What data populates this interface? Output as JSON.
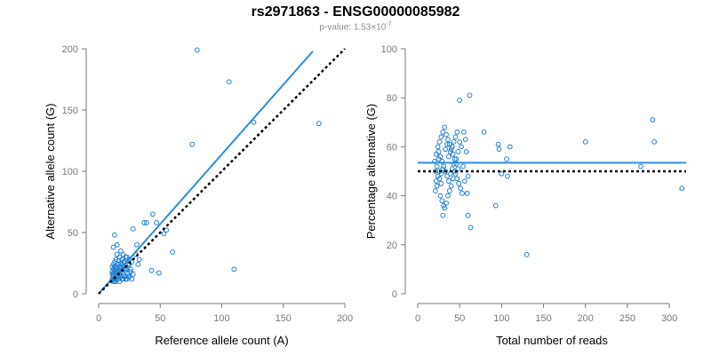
{
  "title": "rs2971863 - ENSG00000085982",
  "subtitle": {
    "prefix": "p-value: 1.53×10",
    "exponent": "-7"
  },
  "colors": {
    "points": "#1f7fd4",
    "fit_line": "#2a8de0",
    "reference_line": "#000000",
    "axis": "#7a7a7a"
  },
  "chart_data": [
    {
      "type": "scatter",
      "xlabel": "Reference allele count (A)",
      "ylabel": "Alternative allele count (G)",
      "xlim": [
        0,
        200
      ],
      "ylim": [
        0,
        200
      ],
      "xticks": [
        0,
        50,
        100,
        150,
        200
      ],
      "yticks": [
        0,
        50,
        100,
        150,
        200
      ],
      "grid": false,
      "lines": [
        {
          "style": "solid",
          "color": "#2a8de0",
          "x": [
            0,
            174
          ],
          "y": [
            0,
            198
          ]
        },
        {
          "style": "dotted",
          "color": "#000000",
          "x": [
            0,
            200
          ],
          "y": [
            0,
            200
          ]
        }
      ],
      "points": [
        [
          80,
          199
        ],
        [
          106,
          173
        ],
        [
          126,
          140
        ],
        [
          179,
          139
        ],
        [
          76,
          122
        ],
        [
          110,
          20
        ],
        [
          60,
          34
        ],
        [
          55,
          52
        ],
        [
          53,
          49
        ],
        [
          44,
          65
        ],
        [
          47,
          58
        ],
        [
          43,
          19
        ],
        [
          49,
          17
        ],
        [
          39,
          58
        ],
        [
          37,
          58
        ],
        [
          31,
          40
        ],
        [
          28,
          53
        ],
        [
          33,
          28
        ],
        [
          30,
          32
        ],
        [
          32,
          24
        ],
        [
          12,
          38
        ],
        [
          13,
          48
        ],
        [
          15,
          40
        ],
        [
          18,
          35
        ],
        [
          20,
          32
        ],
        [
          22,
          30
        ],
        [
          25,
          28
        ],
        [
          27,
          26
        ],
        [
          24,
          24
        ],
        [
          26,
          20
        ],
        [
          20,
          22
        ],
        [
          18,
          25
        ],
        [
          16,
          27
        ],
        [
          14,
          28
        ],
        [
          13,
          26
        ],
        [
          12,
          24
        ],
        [
          11,
          22
        ],
        [
          12,
          20
        ],
        [
          13,
          18
        ],
        [
          14,
          16
        ],
        [
          15,
          14
        ],
        [
          16,
          12
        ],
        [
          17,
          10
        ],
        [
          12,
          14
        ],
        [
          11,
          16
        ],
        [
          12,
          12
        ],
        [
          13,
          10
        ],
        [
          14,
          20
        ],
        [
          15,
          22
        ],
        [
          16,
          24
        ],
        [
          17,
          22
        ],
        [
          18,
          20
        ],
        [
          19,
          18
        ],
        [
          20,
          16
        ],
        [
          21,
          14
        ],
        [
          22,
          12
        ],
        [
          23,
          20
        ],
        [
          24,
          16
        ],
        [
          25,
          14
        ],
        [
          26,
          18
        ],
        [
          27,
          12
        ],
        [
          28,
          16
        ],
        [
          19,
          28
        ],
        [
          21,
          26
        ],
        [
          23,
          30
        ],
        [
          17,
          30
        ],
        [
          15,
          32
        ],
        [
          14,
          10
        ],
        [
          13,
          12
        ],
        [
          12,
          16
        ],
        [
          11,
          18
        ],
        [
          16,
          18
        ],
        [
          18,
          14
        ],
        [
          20,
          12
        ],
        [
          22,
          20
        ],
        [
          24,
          14
        ],
        [
          15,
          18
        ],
        [
          17,
          16
        ],
        [
          19,
          24
        ],
        [
          21,
          20
        ],
        [
          12,
          10
        ],
        [
          14,
          12
        ],
        [
          16,
          14
        ],
        [
          18,
          22
        ],
        [
          20,
          26
        ],
        [
          13,
          22
        ],
        [
          25,
          24
        ],
        [
          23,
          12
        ],
        [
          11,
          12
        ],
        [
          19,
          12
        ]
      ]
    },
    {
      "type": "scatter",
      "xlabel": "Total number of reads",
      "ylabel": "Percentage alternative (G)",
      "xlim": [
        0,
        320
      ],
      "ylim": [
        0,
        100
      ],
      "xticks": [
        0,
        50,
        100,
        150,
        200,
        250,
        300
      ],
      "yticks": [
        0,
        20,
        40,
        60,
        80,
        100
      ],
      "grid": false,
      "lines": [
        {
          "style": "solid",
          "color": "#2a8de0",
          "x": [
            0,
            320
          ],
          "y": [
            53.5,
            53.5
          ]
        },
        {
          "style": "dotted",
          "color": "#000000",
          "x": [
            0,
            320
          ],
          "y": [
            50,
            50
          ]
        }
      ],
      "points": [
        [
          62,
          81
        ],
        [
          50,
          79
        ],
        [
          79,
          66
        ],
        [
          96,
          61
        ],
        [
          97,
          59
        ],
        [
          110,
          60
        ],
        [
          106,
          55
        ],
        [
          100,
          49
        ],
        [
          107,
          48
        ],
        [
          93,
          36
        ],
        [
          130,
          16
        ],
        [
          200,
          62
        ],
        [
          282,
          62
        ],
        [
          280,
          71
        ],
        [
          266,
          52
        ],
        [
          315,
          43
        ],
        [
          60,
          32
        ],
        [
          63,
          27
        ],
        [
          59,
          41
        ],
        [
          56,
          46
        ],
        [
          54,
          52
        ],
        [
          58,
          58
        ],
        [
          60,
          48
        ],
        [
          57,
          63
        ],
        [
          55,
          66
        ],
        [
          52,
          60
        ],
        [
          50,
          62
        ],
        [
          48,
          58
        ],
        [
          46,
          55
        ],
        [
          44,
          50
        ],
        [
          42,
          47
        ],
        [
          40,
          44
        ],
        [
          38,
          42
        ],
        [
          36,
          40
        ],
        [
          34,
          37
        ],
        [
          32,
          35
        ],
        [
          30,
          32
        ],
        [
          28,
          45
        ],
        [
          26,
          50
        ],
        [
          25,
          55
        ],
        [
          24,
          48
        ],
        [
          23,
          52
        ],
        [
          22,
          46
        ],
        [
          21,
          50
        ],
        [
          20,
          54
        ],
        [
          22,
          57
        ],
        [
          24,
          60
        ],
        [
          26,
          62
        ],
        [
          28,
          64
        ],
        [
          30,
          66
        ],
        [
          32,
          68
        ],
        [
          34,
          65
        ],
        [
          36,
          63
        ],
        [
          38,
          61
        ],
        [
          40,
          59
        ],
        [
          42,
          57
        ],
        [
          44,
          55
        ],
        [
          46,
          53
        ],
        [
          48,
          51
        ],
        [
          35,
          48
        ],
        [
          33,
          50
        ],
        [
          31,
          52
        ],
        [
          29,
          54
        ],
        [
          27,
          56
        ],
        [
          25,
          58
        ],
        [
          23,
          44
        ],
        [
          21,
          42
        ],
        [
          27,
          40
        ],
        [
          29,
          38
        ],
        [
          31,
          36
        ],
        [
          37,
          46
        ],
        [
          39,
          49
        ],
        [
          41,
          51
        ],
        [
          43,
          53
        ],
        [
          45,
          49
        ],
        [
          47,
          47
        ],
        [
          49,
          45
        ],
        [
          51,
          43
        ],
        [
          53,
          41
        ],
        [
          37,
          56
        ],
        [
          39,
          58
        ],
        [
          41,
          60
        ],
        [
          43,
          62
        ],
        [
          45,
          64
        ],
        [
          47,
          66
        ],
        [
          33,
          59
        ],
        [
          35,
          61
        ],
        [
          26,
          47
        ],
        [
          28,
          49
        ],
        [
          30,
          51
        ]
      ]
    }
  ]
}
